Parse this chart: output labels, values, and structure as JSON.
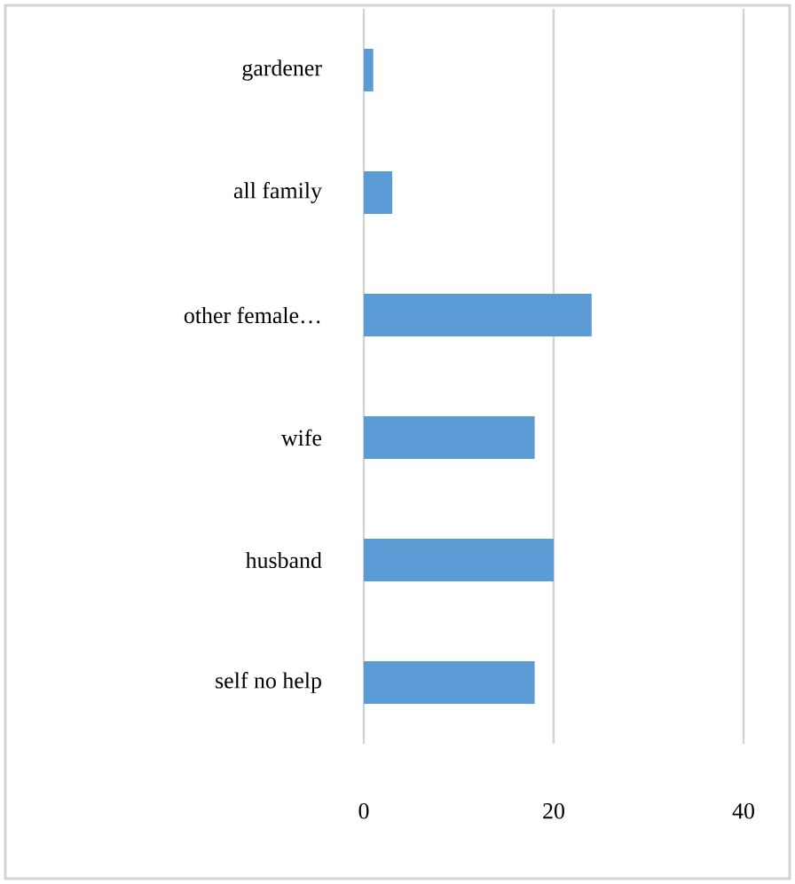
{
  "chart_data": {
    "type": "bar",
    "orientation": "horizontal",
    "categories": [
      "gardener",
      "all family",
      "other female…",
      "wife",
      "husband",
      "self no help"
    ],
    "values": [
      1,
      3,
      24,
      18,
      20,
      18
    ],
    "color": "#5b9bd5",
    "xlim": [
      0,
      40
    ],
    "xticks": [
      0,
      20,
      40
    ],
    "grid": "x"
  }
}
